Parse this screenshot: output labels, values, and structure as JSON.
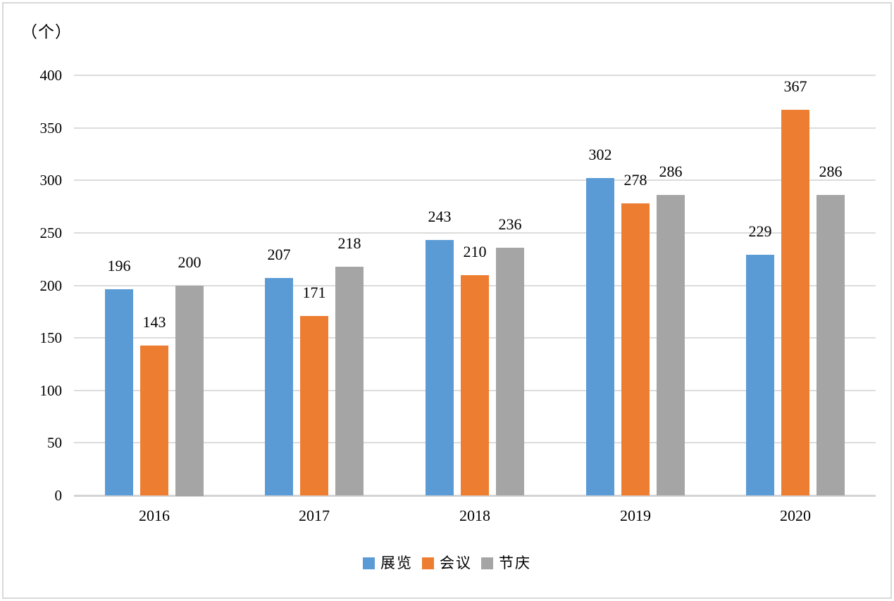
{
  "chart_data": {
    "type": "bar",
    "title": "",
    "unit_label": "（个）",
    "categories": [
      "2016",
      "2017",
      "2018",
      "2019",
      "2020"
    ],
    "series": [
      {
        "name": "展览",
        "color": "#5B9BD5",
        "values": [
          196,
          207,
          243,
          302,
          229
        ]
      },
      {
        "name": "会议",
        "color": "#ED7D31",
        "values": [
          143,
          171,
          210,
          278,
          367
        ]
      },
      {
        "name": "节庆",
        "color": "#A5A5A5",
        "values": [
          200,
          218,
          236,
          286,
          286
        ]
      }
    ],
    "ylim": [
      0,
      400
    ],
    "yticks": [
      0,
      50,
      100,
      150,
      200,
      250,
      300,
      350,
      400
    ],
    "grid": true,
    "data_labels": true,
    "legend_position": "bottom",
    "colors": {
      "gridline": "#DCDCDC",
      "axis_line": "#D4D4D4",
      "frame_border": "#D9D9D9",
      "label_text": "#000000",
      "background": "#FFFFFF"
    }
  }
}
